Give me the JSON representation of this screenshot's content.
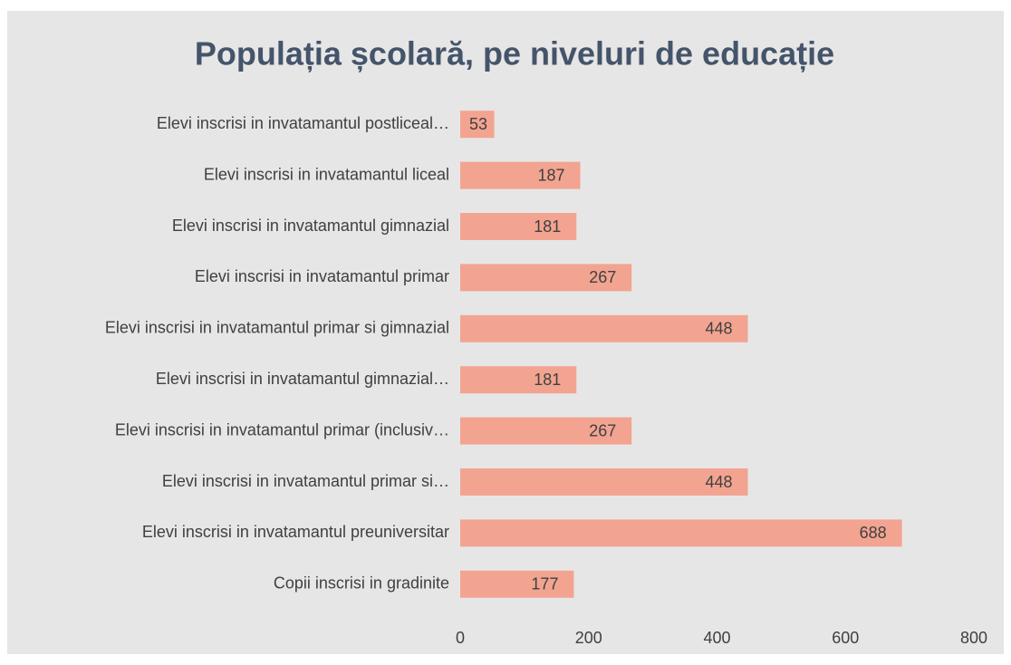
{
  "chart_data": {
    "type": "bar",
    "orientation": "horizontal",
    "title": "Populația școlară, pe niveluri de educație",
    "categories": [
      "Elevi inscrisi in invatamantul postliceal…",
      "Elevi inscrisi in invatamantul liceal",
      "Elevi inscrisi in invatamantul gimnazial",
      "Elevi inscrisi in invatamantul primar",
      "Elevi inscrisi in invatamantul primar si gimnazial",
      "Elevi inscrisi in invatamantul gimnazial…",
      "Elevi inscrisi in invatamantul primar (inclusiv…",
      "Elevi inscrisi in invatamantul primar si…",
      "Elevi inscrisi in invatamantul preuniversitar",
      "Copii inscrisi in gradinite"
    ],
    "values": [
      53,
      187,
      181,
      267,
      448,
      181,
      267,
      448,
      688,
      177
    ],
    "color": "#f2a491",
    "xlim": [
      0,
      800
    ],
    "xticks": [
      0,
      200,
      400,
      600,
      800
    ],
    "grid": false
  }
}
